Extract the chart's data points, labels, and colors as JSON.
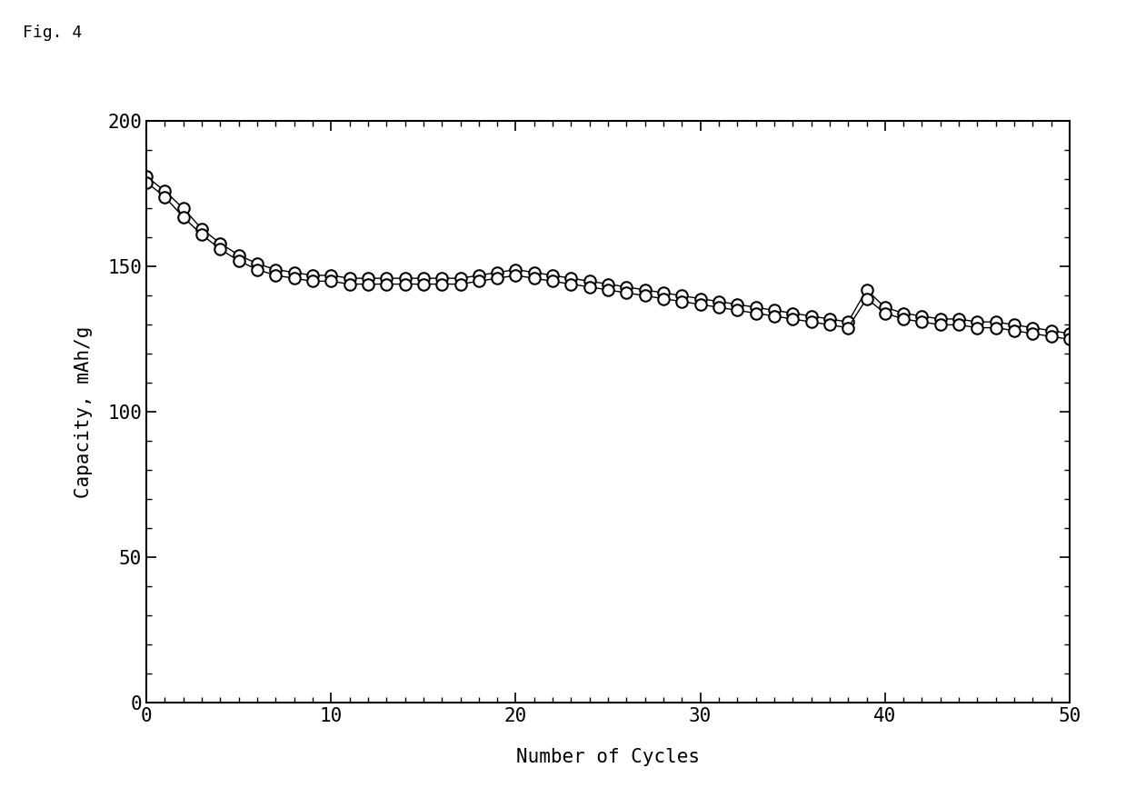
{
  "title": "Fig. 4",
  "xlabel": "Number of Cycles",
  "ylabel": "Capacity, mAh/g",
  "xlim": [
    0,
    50
  ],
  "ylim": [
    0,
    200
  ],
  "xticks": [
    0,
    10,
    20,
    30,
    40,
    50
  ],
  "yticks": [
    0,
    50,
    100,
    150,
    200
  ],
  "background_color": "#ffffff",
  "series1_x": [
    0,
    1,
    2,
    3,
    4,
    5,
    6,
    7,
    8,
    9,
    10,
    11,
    12,
    13,
    14,
    15,
    16,
    17,
    18,
    19,
    20,
    21,
    22,
    23,
    24,
    25,
    26,
    27,
    28,
    29,
    30,
    31,
    32,
    33,
    34,
    35,
    36,
    37,
    38,
    39,
    40,
    41,
    42,
    43,
    44,
    45,
    46,
    47,
    48,
    49,
    50
  ],
  "series1_y": [
    181,
    176,
    170,
    163,
    158,
    154,
    151,
    149,
    148,
    147,
    147,
    146,
    146,
    146,
    146,
    146,
    146,
    146,
    147,
    148,
    149,
    148,
    147,
    146,
    145,
    144,
    143,
    142,
    141,
    140,
    139,
    138,
    137,
    136,
    135,
    134,
    133,
    132,
    131,
    142,
    136,
    134,
    133,
    132,
    132,
    131,
    131,
    130,
    129,
    128,
    127
  ],
  "series2_x": [
    0,
    1,
    2,
    3,
    4,
    5,
    6,
    7,
    8,
    9,
    10,
    11,
    12,
    13,
    14,
    15,
    16,
    17,
    18,
    19,
    20,
    21,
    22,
    23,
    24,
    25,
    26,
    27,
    28,
    29,
    30,
    31,
    32,
    33,
    34,
    35,
    36,
    37,
    38,
    39,
    40,
    41,
    42,
    43,
    44,
    45,
    46,
    47,
    48,
    49,
    50
  ],
  "series2_y": [
    179,
    174,
    167,
    161,
    156,
    152,
    149,
    147,
    146,
    145,
    145,
    144,
    144,
    144,
    144,
    144,
    144,
    144,
    145,
    146,
    147,
    146,
    145,
    144,
    143,
    142,
    141,
    140,
    139,
    138,
    137,
    136,
    135,
    134,
    133,
    132,
    131,
    130,
    129,
    139,
    134,
    132,
    131,
    130,
    130,
    129,
    129,
    128,
    127,
    126,
    125
  ],
  "marker_size": 9,
  "line_color": "#000000",
  "marker_facecolor": "#ffffff",
  "marker_edgecolor": "#000000",
  "marker_linewidth": 1.5,
  "line_width": 1.0,
  "font_family": "monospace",
  "title_fontsize": 13,
  "label_fontsize": 15,
  "tick_fontsize": 15
}
